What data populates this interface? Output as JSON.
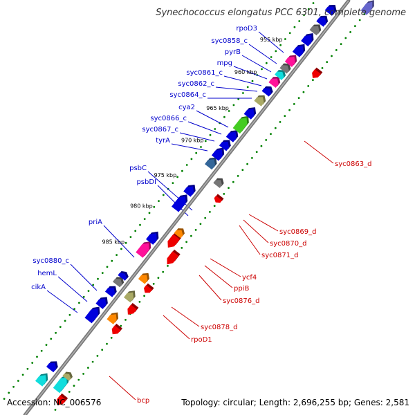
{
  "title": "Synechococcus elongatus PCC 6301, complete genome",
  "accession": "Accession: NC_006576",
  "topology": "Topology: circular; Length: 2,696,255 bp; Genes: 2,581",
  "colors": {
    "backbone": "#7a7a7a",
    "ticks": "#008000",
    "forward_label": "#0000cc",
    "reverse_label": "#cc0000",
    "gene_blue": "#0000dd",
    "gene_red": "#ee0000",
    "gene_green": "#44cc22",
    "gene_olive": "#aaaa66",
    "gene_magenta": "#ff1199",
    "gene_orange": "#ff8800",
    "gene_cyan": "#11dddd",
    "gene_steel": "#336699",
    "gene_grey": "#777777",
    "gene_purple": "#6666cc"
  },
  "kbp_ticks": [
    "955 kbp",
    "960 kbp",
    "965 kbp",
    "970 kbp",
    "975 kbp",
    "980 kbp",
    "985 kbp"
  ],
  "forward_labels": [
    "rpoD3",
    "syc0858_c",
    "pyrB",
    "mpg",
    "syc0861_c",
    "syc0862_c",
    "syc0864_c",
    "cya2",
    "syc0866_c",
    "syc0867_c",
    "tyrA",
    "psbC",
    "psbDI",
    "priA",
    "syc0880_c",
    "hemL",
    "cikA"
  ],
  "reverse_labels": [
    "syc0863_d",
    "syc0869_d",
    "syc0870_d",
    "syc0871_d",
    "ycf4",
    "ppiB",
    "syc0876_d",
    "syc0878_d",
    "rpoD1",
    "bcp"
  ]
}
